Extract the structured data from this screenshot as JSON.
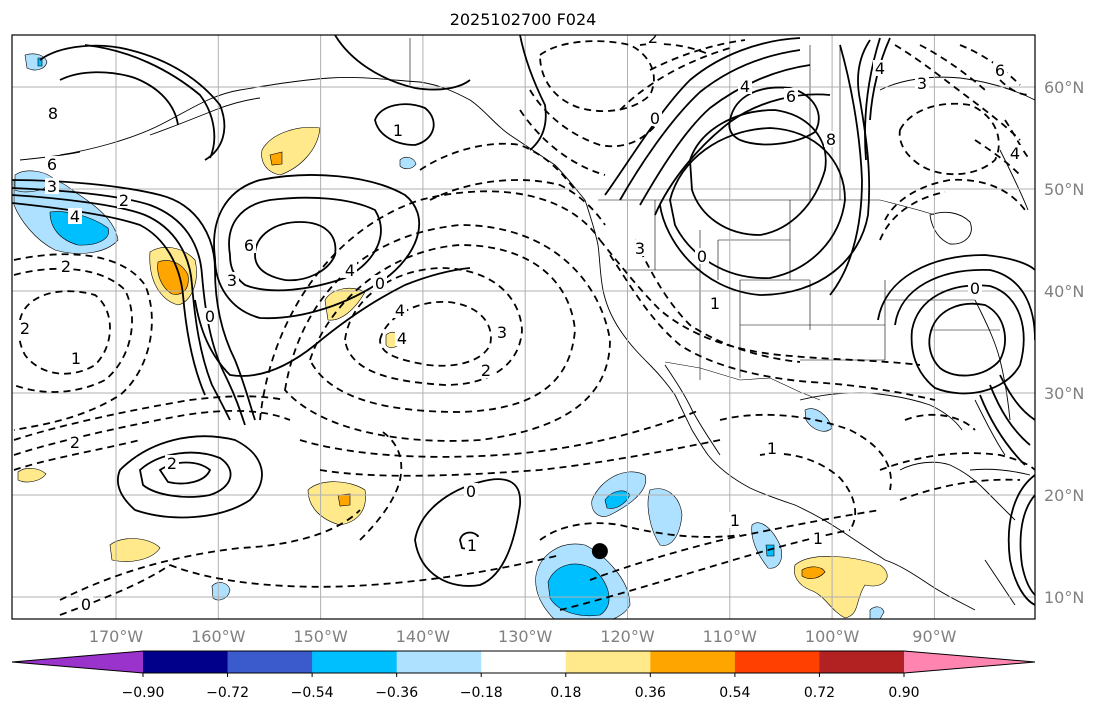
{
  "title": "2025102700 F024",
  "map": {
    "lon_labels": [
      {
        "lon": -170,
        "text": "170°W"
      },
      {
        "lon": -160,
        "text": "160°W"
      },
      {
        "lon": -150,
        "text": "150°W"
      },
      {
        "lon": -140,
        "text": "140°W"
      },
      {
        "lon": -130,
        "text": "130°W"
      },
      {
        "lon": -120,
        "text": "120°W"
      },
      {
        "lon": -110,
        "text": "110°W"
      },
      {
        "lon": -100,
        "text": "100°W"
      },
      {
        "lon": -90,
        "text": "90°W"
      }
    ],
    "lat_labels": [
      {
        "lat": 60,
        "text": "60°N"
      },
      {
        "lat": 50,
        "text": "50°N"
      },
      {
        "lat": 40,
        "text": "40°N"
      },
      {
        "lat": 30,
        "text": "30°N"
      },
      {
        "lat": 20,
        "text": "20°N"
      },
      {
        "lat": 10,
        "text": "10°N"
      }
    ],
    "contour_labels": [
      "8",
      "6",
      "3",
      "2",
      "4",
      "2",
      "2",
      "0",
      "1",
      "2",
      "2",
      "6",
      "4",
      "3",
      "0",
      "4",
      "4",
      "3",
      "2",
      "0",
      "1",
      "0",
      "2",
      "4",
      "6",
      "8",
      "4",
      "3",
      "0",
      "1",
      "0",
      "1",
      "1",
      "1",
      "3",
      "0",
      "1",
      "6",
      "4"
    ],
    "marker": {
      "lon": -122.7,
      "lat": 14.5
    }
  },
  "colorbar": {
    "colors": [
      "#9933cc",
      "#00008b",
      "#3b5bcc",
      "#00bfff",
      "#aee0ff",
      "#ffffff",
      "#ffe98a",
      "#ffa500",
      "#ff4000",
      "#b22222",
      "#ff85b0"
    ],
    "tick_labels": [
      "−0.90",
      "−0.72",
      "−0.54",
      "−0.36",
      "−0.18",
      "0.18",
      "0.36",
      "0.54",
      "0.72",
      "0.90"
    ]
  }
}
